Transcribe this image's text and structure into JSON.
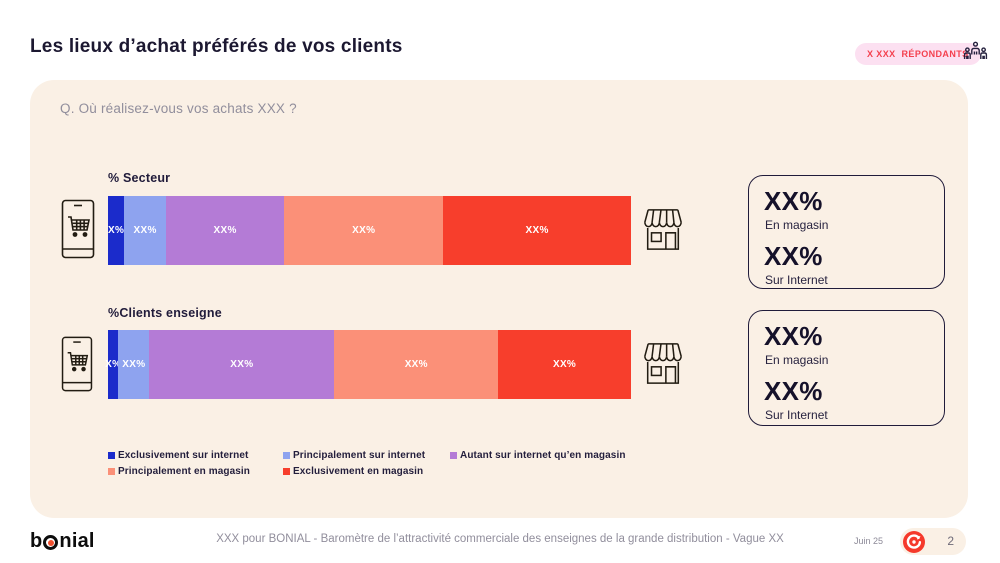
{
  "header": {
    "title": "Les lieux d’achat préférés de vos clients",
    "respondents_count": "X XXX",
    "respondents_label": "RÉPONDANTS"
  },
  "card": {
    "question": "Q. Où réalisez-vous vos achats XXX ?"
  },
  "chart_data": {
    "type": "bar",
    "subtype": "horizontal-stacked",
    "categories": [
      "% Secteur",
      "%Clients enseigne"
    ],
    "legend_position": "bottom-left",
    "legend": [
      {
        "name": "Exclusivement sur internet",
        "color": "#1b2bcb"
      },
      {
        "name": "Principalement sur internet",
        "color": "#8ea3ef"
      },
      {
        "name": "Autant sur internet qu’en magasin",
        "color": "#b47bd6"
      },
      {
        "name": "Principalement en magasin",
        "color": "#fb9078"
      },
      {
        "name": "Exclusivement en magasin",
        "color": "#f73e2c"
      }
    ],
    "bars": [
      {
        "category": "% Secteur",
        "segments": [
          {
            "label": "X%",
            "width_pct": 3.1
          },
          {
            "label": "XX%",
            "width_pct": 8.0
          },
          {
            "label": "XX%",
            "width_pct": 22.6
          },
          {
            "label": "XX%",
            "width_pct": 30.4
          },
          {
            "label": "XX%",
            "width_pct": 35.9
          }
        ]
      },
      {
        "category": "%Clients enseigne",
        "segments": [
          {
            "label": "X%",
            "width_pct": 2.0
          },
          {
            "label": "XX%",
            "width_pct": 5.9
          },
          {
            "label": "XX%",
            "width_pct": 35.4
          },
          {
            "label": "XX%",
            "width_pct": 31.3
          },
          {
            "label": "XX%",
            "width_pct": 25.4
          }
        ]
      }
    ]
  },
  "summary_boxes": [
    {
      "store_value": "XX%",
      "store_label": "En magasin",
      "internet_value": "XX%",
      "internet_label": "Sur Internet"
    },
    {
      "store_value": "XX%",
      "store_label": "En magasin",
      "internet_value": "XX%",
      "internet_label": "Sur Internet"
    }
  ],
  "footer": {
    "logo_text_start": "b",
    "logo_text_end": "nial",
    "caption": "XXX pour BONIAL - Baromètre de l’attractivité commerciale des enseignes de la grande distribution - Vague XX",
    "date": "Juin 25",
    "page_number": "2"
  },
  "colors": {
    "card_bg": "#faf0e5",
    "badge_bg": "#fce0f1",
    "badge_text": "#f4404e",
    "navy": "#201b3a",
    "gray_text": "#918e9c"
  }
}
